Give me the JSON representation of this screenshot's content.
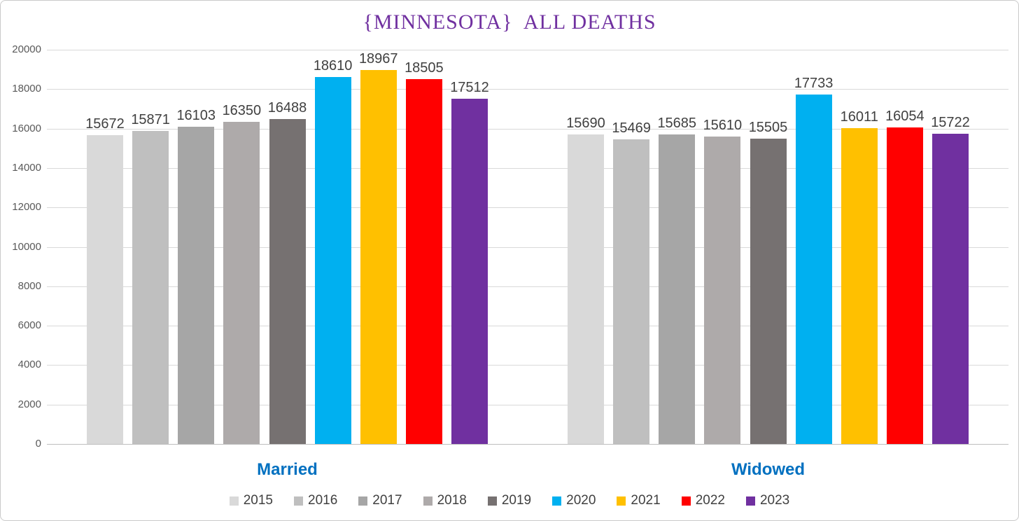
{
  "title": "{MINNESOTA}  ALL DEATHS",
  "palette": {
    "title_color": "#7030A0",
    "category_label_color": "#0070C0",
    "value_label_color": "#404040",
    "axis_label_color": "#595959",
    "gridline_color": "#d9d9d9",
    "axis_line_color": "#bfbfbf"
  },
  "chart_data": {
    "type": "bar",
    "title": "{MINNESOTA}  ALL DEATHS",
    "categories": [
      "Married",
      "Widowed"
    ],
    "series": [
      {
        "name": "2015",
        "color": "#D9D9D9",
        "values": [
          15672,
          15690
        ]
      },
      {
        "name": "2016",
        "color": "#BFBFBF",
        "values": [
          15871,
          15469
        ]
      },
      {
        "name": "2017",
        "color": "#A6A6A6",
        "values": [
          16103,
          15685
        ]
      },
      {
        "name": "2018",
        "color": "#AEAAAA",
        "values": [
          16350,
          15610
        ]
      },
      {
        "name": "2019",
        "color": "#767171",
        "values": [
          16488,
          15505
        ]
      },
      {
        "name": "2020",
        "color": "#00B0F0",
        "values": [
          18610,
          17733
        ]
      },
      {
        "name": "2021",
        "color": "#FFC000",
        "values": [
          18967,
          16011
        ]
      },
      {
        "name": "2022",
        "color": "#FF0000",
        "values": [
          18505,
          16054
        ]
      },
      {
        "name": "2023",
        "color": "#7030A0",
        "values": [
          17512,
          15722
        ]
      }
    ],
    "xlabel": "",
    "ylabel": "",
    "ylim": [
      0,
      20000
    ],
    "ytick_step": 2000,
    "grid": true,
    "legend_position": "bottom",
    "data_labels": true
  }
}
